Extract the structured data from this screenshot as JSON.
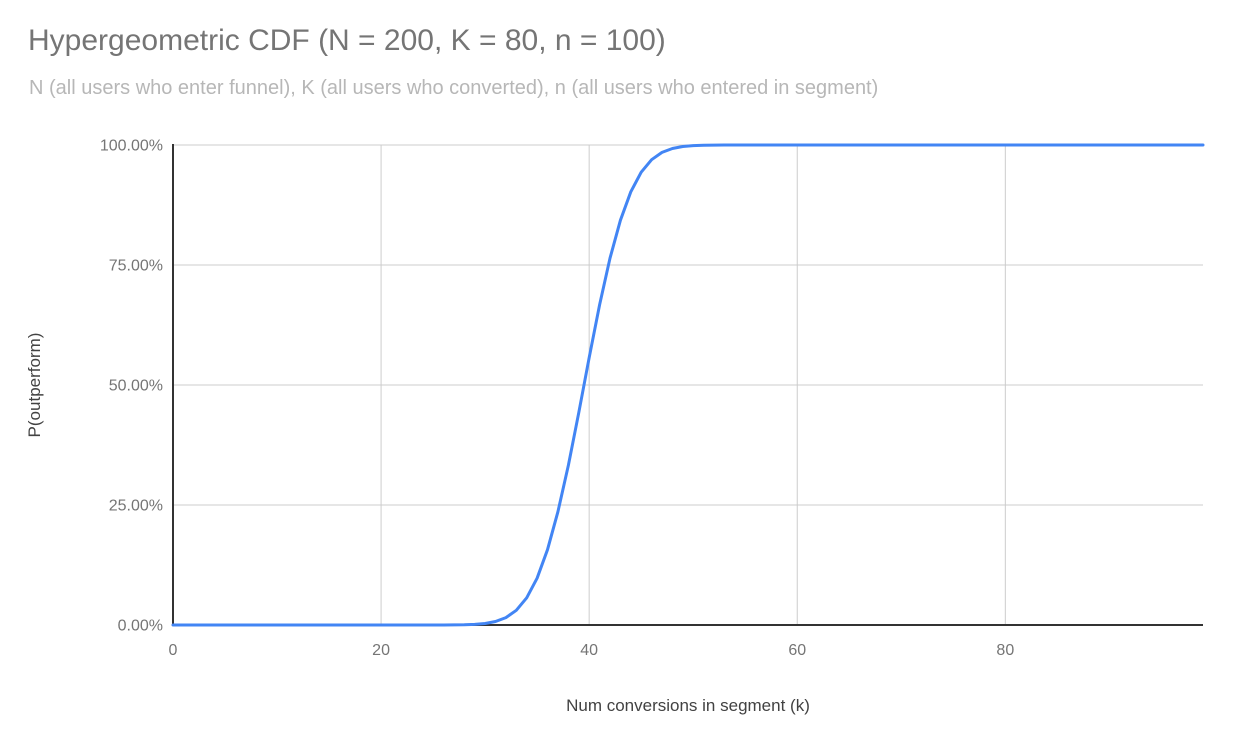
{
  "colors": {
    "background": "#ffffff",
    "title_text": "#757575",
    "subtitle_text": "#b7b7b7",
    "tick_text": "#757575",
    "axis_title_text": "#424242",
    "gridline": "#cccccc",
    "axis_line": "#333333",
    "series_line": "#4285f4"
  },
  "chart_data": {
    "type": "line",
    "title": "Hypergeometric CDF (N = 200, K = 80, n = 100)",
    "subtitle": "N (all users who enter funnel), K (all users who converted), n (all users who entered in segment)",
    "xlabel": "Num conversions in segment (k)",
    "ylabel": "P(outperform)",
    "xlim": [
      0,
      99
    ],
    "ylim": [
      0,
      1
    ],
    "grid": true,
    "legend_position": "none",
    "x_ticks": [
      {
        "value": 0,
        "label": "0"
      },
      {
        "value": 20,
        "label": "20"
      },
      {
        "value": 40,
        "label": "40"
      },
      {
        "value": 60,
        "label": "60"
      },
      {
        "value": 80,
        "label": "80"
      }
    ],
    "y_ticks": [
      {
        "value": 0,
        "label": "0.00%"
      },
      {
        "value": 0.25,
        "label": "25.00%"
      },
      {
        "value": 0.5,
        "label": "50.00%"
      },
      {
        "value": 0.75,
        "label": "75.00%"
      },
      {
        "value": 1,
        "label": "100.00%"
      }
    ],
    "series": [
      {
        "name": "P(outperform)",
        "color": "#4285f4",
        "x_start": 0,
        "x_step": 1,
        "values": [
          0,
          0,
          0,
          0,
          0,
          0,
          0,
          0,
          0,
          0,
          0,
          0,
          0,
          0,
          0,
          0,
          0,
          0,
          0,
          0,
          0,
          0,
          0,
          0,
          0,
          0,
          0.0001,
          0.0002,
          0.0005,
          0.0013,
          0.0031,
          0.0072,
          0.0154,
          0.0307,
          0.0567,
          0.0976,
          0.1568,
          0.2358,
          0.3329,
          0.4428,
          0.5572,
          0.6671,
          0.7642,
          0.8432,
          0.9024,
          0.9433,
          0.9693,
          0.9846,
          0.9928,
          0.9969,
          0.9987,
          0.9995,
          0.9998,
          0.9999,
          1,
          1,
          1,
          1,
          1,
          1,
          1,
          1,
          1,
          1,
          1,
          1,
          1,
          1,
          1,
          1,
          1,
          1,
          1,
          1,
          1,
          1,
          1,
          1,
          1,
          1,
          1,
          1,
          1,
          1,
          1,
          1,
          1,
          1,
          1,
          1,
          1,
          1,
          1,
          1,
          1,
          1,
          1,
          1,
          1,
          1
        ]
      }
    ]
  }
}
